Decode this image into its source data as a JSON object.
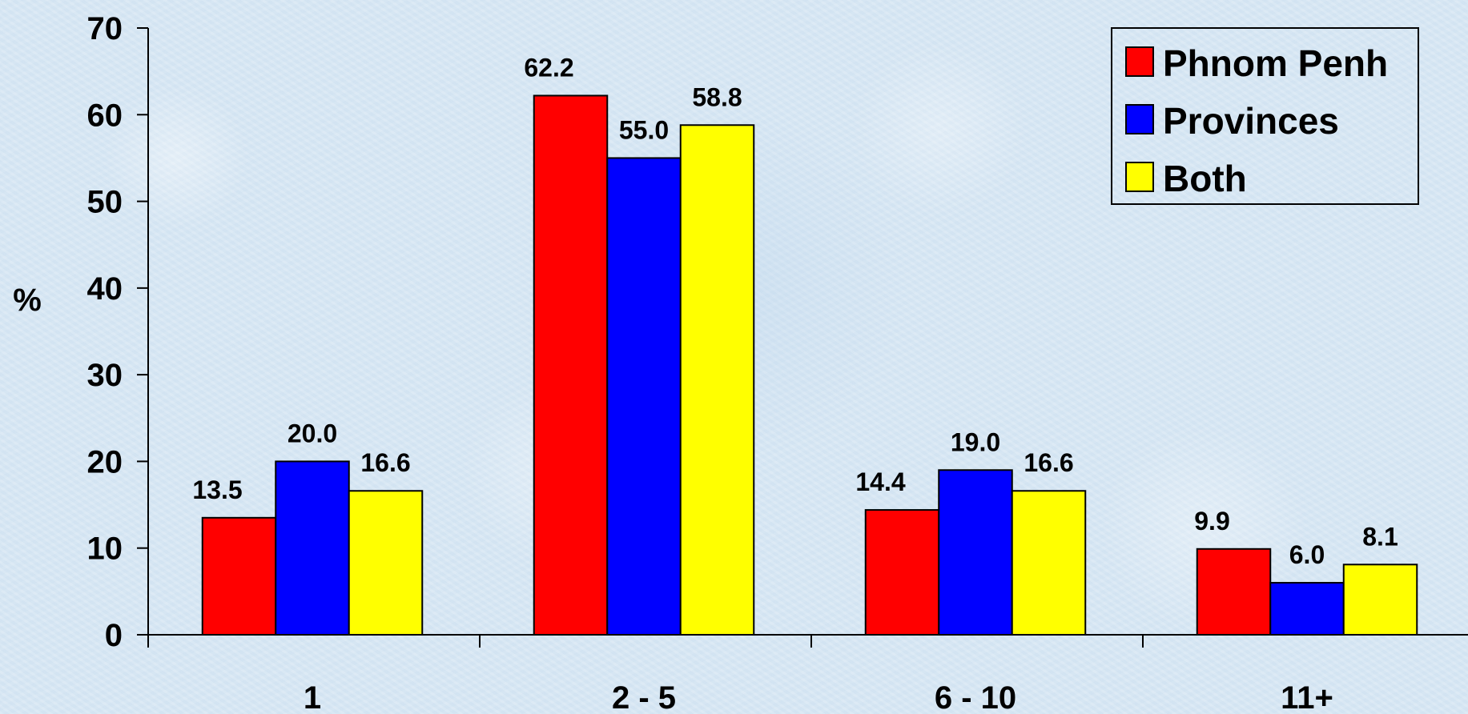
{
  "chart_data": {
    "type": "bar",
    "title": "",
    "xlabel": "",
    "ylabel": "%",
    "ylim": [
      0,
      70
    ],
    "yticks": [
      0,
      10,
      20,
      30,
      40,
      50,
      60,
      70
    ],
    "categories": [
      "1",
      "2 - 5",
      "6 - 10",
      "11+"
    ],
    "series": [
      {
        "name": "Phnom Penh",
        "color": "#ff0000",
        "values": [
          13.5,
          62.2,
          14.4,
          9.9
        ],
        "labels": [
          "13.5",
          "62.2",
          "14.4",
          "9.9"
        ]
      },
      {
        "name": "Provinces",
        "color": "#0000ff",
        "values": [
          20.0,
          55.0,
          19.0,
          6.0
        ],
        "labels": [
          "20.0",
          "55.0",
          "19.0",
          "6.0"
        ]
      },
      {
        "name": "Both",
        "color": "#ffff00",
        "values": [
          16.6,
          58.8,
          16.6,
          8.1
        ],
        "labels": [
          "16.6",
          "58.8",
          "16.6",
          "8.1"
        ]
      }
    ],
    "grid": false,
    "legend_position": "top-right",
    "data_labels": true
  }
}
